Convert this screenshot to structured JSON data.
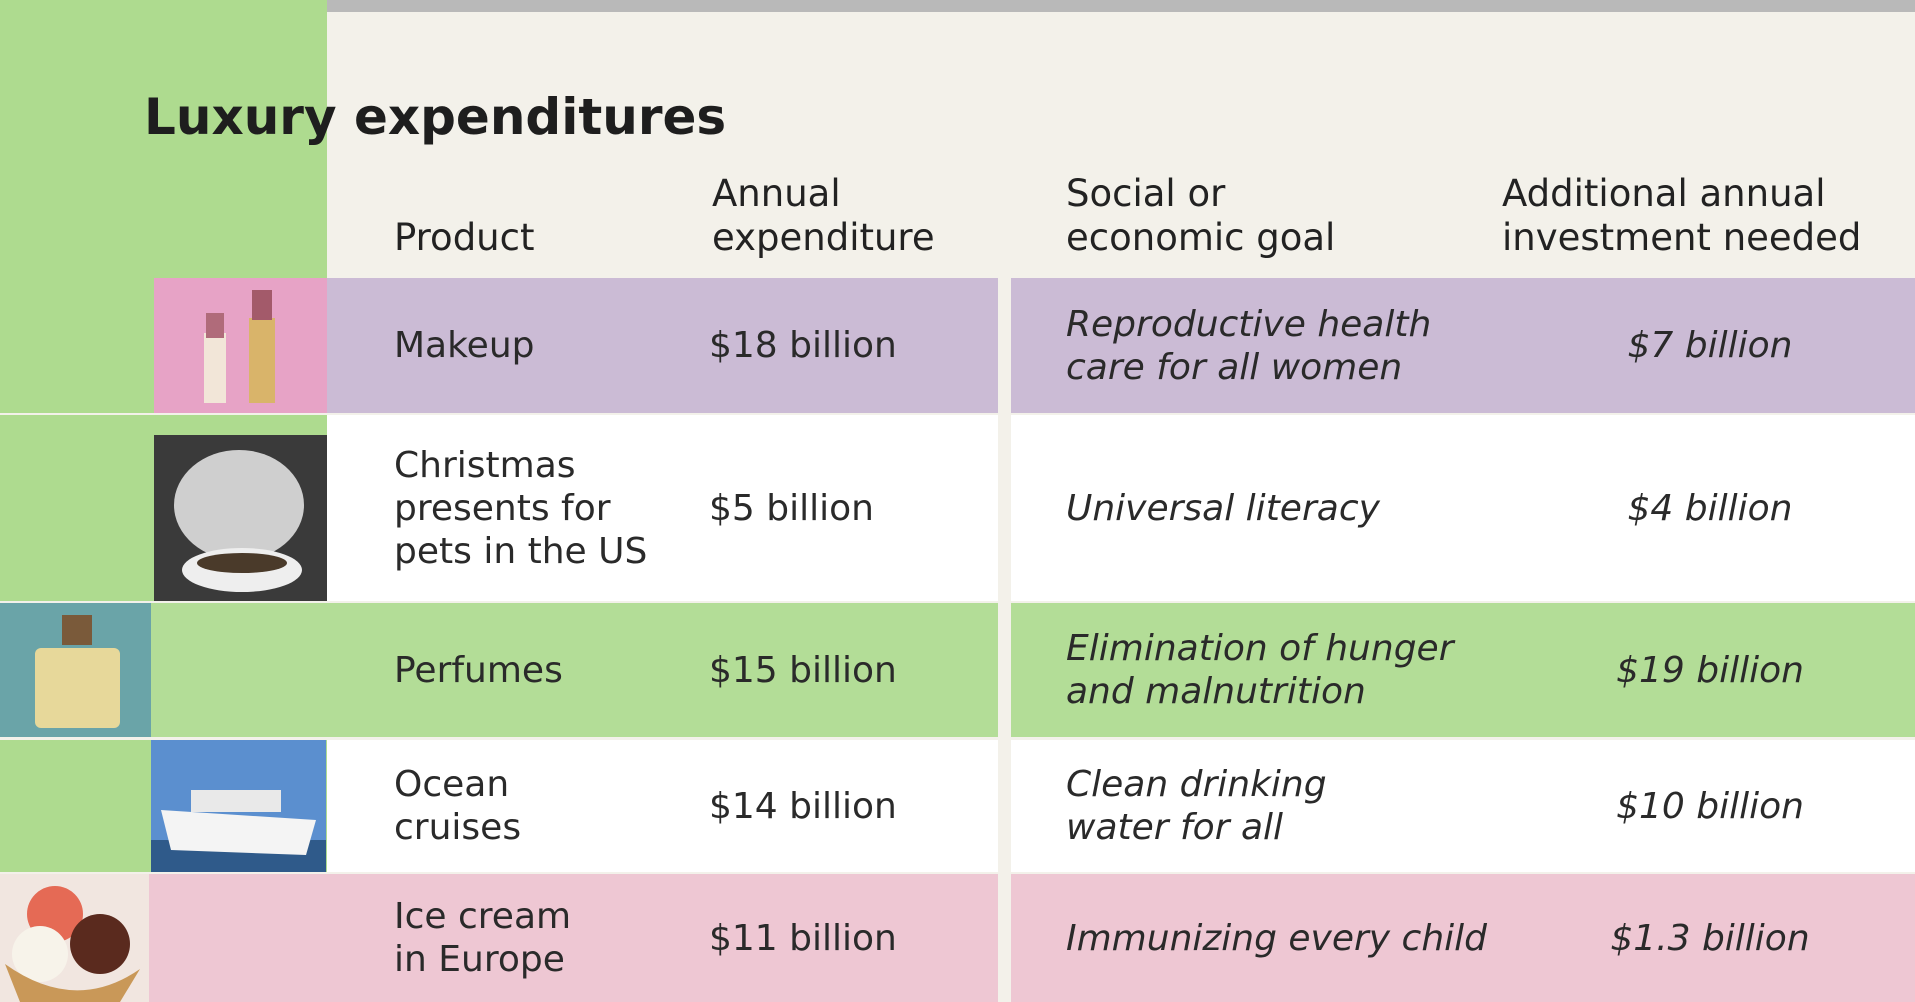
{
  "header": {
    "title": "Luxury expenditures"
  },
  "table": {
    "columns": [
      "Product",
      "Annual\nexpenditure",
      "Social or\neconomic goal",
      "Additional annual\ninvestment needed"
    ],
    "rows": [
      [
        "Makeup",
        "$18 billion",
        "Reproductive health\ncare for all women",
        "$7 billion"
      ],
      [
        "Christmas\npresents for\npets in the US",
        "$5 billion",
        "Universal literacy",
        "$4 billion"
      ],
      [
        "Perfumes",
        "$15 billion",
        "Elimination of hunger\nand malnutrition",
        "$19 billion"
      ],
      [
        "Ocean\ncruises",
        "$14 billion",
        "Clean drinking\nwater for all",
        "$10 billion"
      ],
      [
        "Ice cream\nin Europe",
        "$11 billion",
        "Immunizing every child",
        "$1.3 billion"
      ]
    ]
  }
}
